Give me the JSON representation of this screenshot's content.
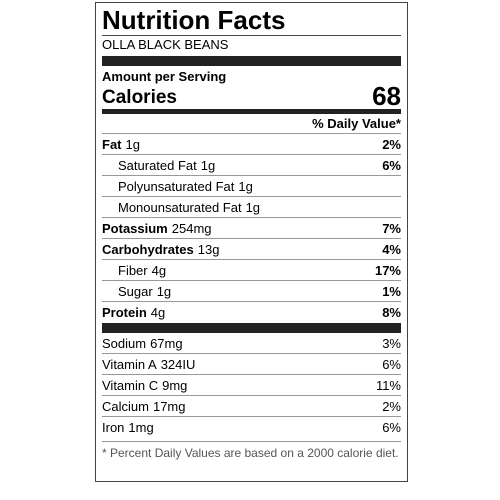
{
  "header": {
    "title": "Nutrition Facts",
    "subtitle": "OLLA BLACK BEANS"
  },
  "serving": {
    "amount_label": "Amount per Serving",
    "calories_label": "Calories",
    "calories": 68
  },
  "daily_value_header": "% Daily Value*",
  "nutrients": [
    {
      "name": "Fat",
      "amount": "1g",
      "dv": "2%",
      "sub_items": [
        {
          "name": "Saturated Fat",
          "amount": "1g",
          "dv": "6%"
        },
        {
          "name": "Polyunsaturated Fat",
          "amount": "1g"
        },
        {
          "name": "Monounsaturated Fat",
          "amount": "1g"
        }
      ]
    },
    {
      "name": "Potassium",
      "amount": "254mg",
      "dv": "7%"
    },
    {
      "name": "Carbohydrates",
      "amount": "13g",
      "dv": "4%",
      "sub_items": [
        {
          "name": "Fiber",
          "amount": "4g",
          "dv": "17%"
        },
        {
          "name": "Sugar",
          "amount": "1g",
          "dv": "1%"
        }
      ]
    },
    {
      "name": "Protein",
      "amount": "4g",
      "dv": "8%"
    }
  ],
  "vitamins": [
    {
      "name": "Sodium",
      "amount": "67mg",
      "dv": "3%"
    },
    {
      "name": "Vitamin A",
      "amount": "324IU",
      "dv": "6%"
    },
    {
      "name": "Vitamin C",
      "amount": "9mg",
      "dv": "11%"
    },
    {
      "name": "Calcium",
      "amount": "17mg",
      "dv": "2%"
    },
    {
      "name": "Iron",
      "amount": "1mg",
      "dv": "6%"
    }
  ],
  "footnote": "* Percent Daily Values are based on a 2000 calorie diet."
}
